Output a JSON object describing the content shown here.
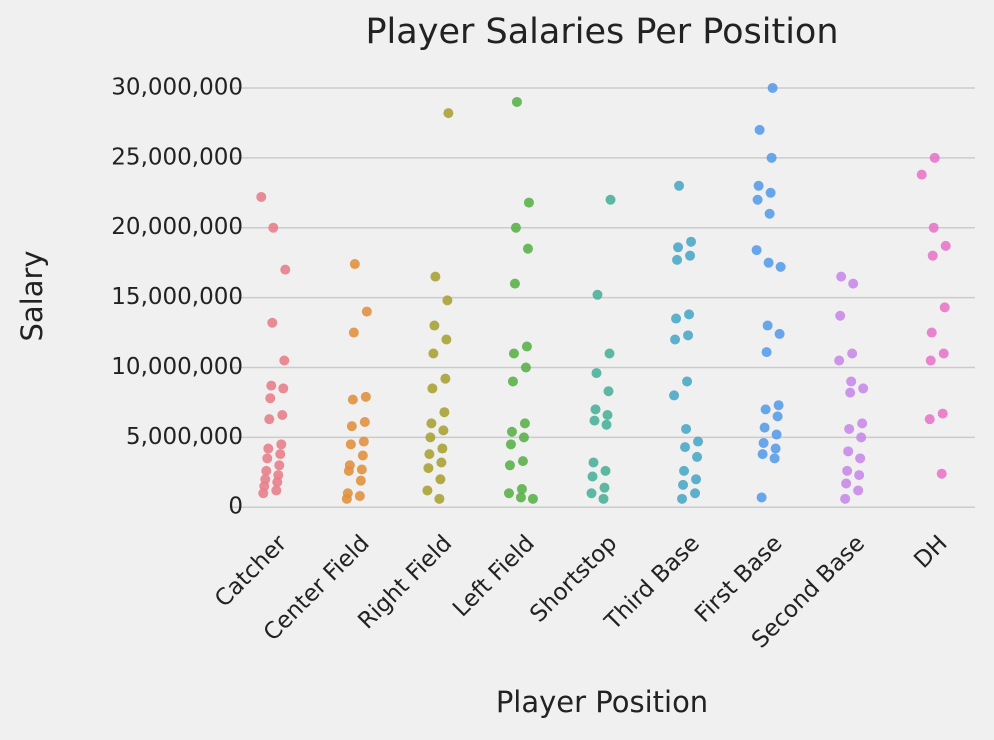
{
  "chart_data": {
    "type": "strip",
    "title": "Player Salaries Per Position",
    "xlabel": "Player Position",
    "ylabel": "Salary",
    "categories": [
      "Catcher",
      "Center Field",
      "Right Field",
      "Left Field",
      "Shortstop",
      "Third Base",
      "First Base",
      "Second Base",
      "DH"
    ],
    "colors": [
      "#e8808a",
      "#e0913e",
      "#a9a335",
      "#5bb04b",
      "#4cb19a",
      "#4ca9c6",
      "#5a9de8",
      "#c98be8",
      "#e877c9"
    ],
    "values": [
      [
        22200000,
        20000000,
        17000000,
        13200000,
        10500000,
        8700000,
        8500000,
        7800000,
        6600000,
        6300000,
        4500000,
        4200000,
        3800000,
        3500000,
        3000000,
        2600000,
        2300000,
        2000000,
        1800000,
        1500000,
        1200000,
        1000000
      ],
      [
        17400000,
        14000000,
        12500000,
        7900000,
        7700000,
        6100000,
        5800000,
        4700000,
        4500000,
        3700000,
        3000000,
        2700000,
        2600000,
        1900000,
        1000000,
        800000,
        600000
      ],
      [
        28200000,
        16500000,
        14800000,
        13000000,
        12000000,
        11000000,
        9200000,
        8500000,
        6800000,
        6000000,
        5500000,
        5000000,
        4200000,
        3800000,
        3200000,
        2800000,
        2000000,
        1200000,
        600000
      ],
      [
        29000000,
        21800000,
        20000000,
        18500000,
        16000000,
        11500000,
        11000000,
        10000000,
        9000000,
        6000000,
        5400000,
        5000000,
        4500000,
        3300000,
        3000000,
        1300000,
        1000000,
        700000,
        600000
      ],
      [
        22000000,
        15200000,
        11000000,
        9600000,
        8300000,
        7000000,
        6600000,
        6200000,
        5900000,
        3200000,
        2600000,
        2200000,
        1400000,
        1000000,
        600000
      ],
      [
        23000000,
        19000000,
        18600000,
        18000000,
        17700000,
        13800000,
        13500000,
        12300000,
        12000000,
        9000000,
        8000000,
        5600000,
        4700000,
        4300000,
        3600000,
        2600000,
        2000000,
        1600000,
        1000000,
        600000
      ],
      [
        30000000,
        27000000,
        25000000,
        23000000,
        22500000,
        22000000,
        21000000,
        18400000,
        17500000,
        17200000,
        13000000,
        12400000,
        11100000,
        7300000,
        7000000,
        6500000,
        5700000,
        5200000,
        4600000,
        4200000,
        3800000,
        3500000,
        700000
      ],
      [
        16500000,
        16000000,
        13700000,
        11000000,
        10500000,
        9000000,
        8500000,
        8200000,
        6000000,
        5600000,
        5000000,
        4000000,
        3500000,
        2600000,
        2300000,
        1700000,
        1200000,
        600000
      ],
      [
        25000000,
        23800000,
        20000000,
        18700000,
        18000000,
        14300000,
        12500000,
        11000000,
        10500000,
        6700000,
        6300000,
        2400000
      ]
    ],
    "ylim": [
      -1200000,
      31500000
    ],
    "yticks": [
      0,
      {
        "value": 5000000,
        "label": "5,000,000"
      },
      {
        "value": 10000000,
        "label": "10,000,000"
      },
      {
        "value": 15000000,
        "label": "15,000,000"
      },
      {
        "value": 20000000,
        "label": "20,000,000"
      },
      {
        "value": 25000000,
        "label": "25,000,000"
      },
      {
        "value": 30000000,
        "label": "30,000,000"
      }
    ],
    "grid": true
  }
}
